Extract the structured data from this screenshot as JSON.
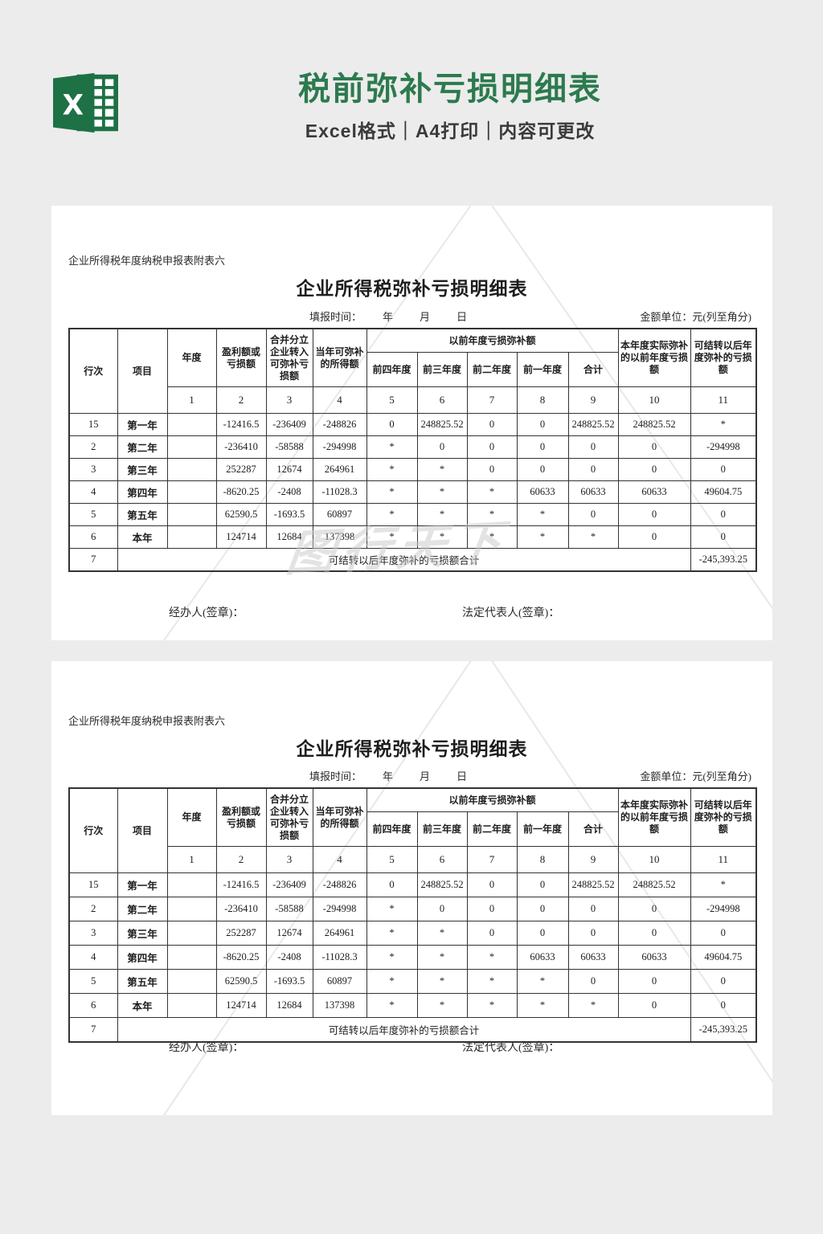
{
  "page": {
    "title": "税前弥补亏损明细表",
    "subtitle": "Excel格式｜A4打印｜内容可更改"
  },
  "colors": {
    "brand_green": "#2c7a4e",
    "icon_green": "#1e7145",
    "page_background": "#ececec",
    "table_border": "#333333",
    "watermark_gray": "#c9c9c9"
  },
  "icon": {
    "name": "excel-logo",
    "letter": "X"
  },
  "sheet": {
    "form_note": "企业所得税年度纳税申报表附表六",
    "table_title": "企业所得税弥补亏损明细表",
    "fill_time_label": "填报时间：",
    "fill_time_value": "年　月　日",
    "unit_label": "金额单位：元(列至角分)",
    "header": {
      "row_no": "行次",
      "item": "项目",
      "year": "年度",
      "profit_loss": "盈利额或亏损额",
      "merge_transfer": "合并分立企业转入可弥补亏损额",
      "current_income": "当年可弥补的所得额",
      "prior_group": "以前年度亏损弥补额",
      "prior_cols": [
        "前四年度",
        "前三年度",
        "前二年度",
        "前一年度",
        "合计"
      ],
      "actual_makeup": "本年度实际弥补的以前年度亏损额",
      "carry_forward": "可结转以后年度弥补的亏损额",
      "col_numbers": [
        "1",
        "2",
        "3",
        "4",
        "5",
        "6",
        "7",
        "8",
        "9",
        "10",
        "11"
      ]
    },
    "rows": [
      {
        "no": "15",
        "item": "第一年",
        "year": "",
        "c2": "-12416.5",
        "c3": "-236409",
        "c4": "-248826",
        "c5": "0",
        "c6": "248825.52",
        "c7": "0",
        "c8": "0",
        "c9": "248825.52",
        "c10": "248825.52",
        "c11": "*"
      },
      {
        "no": "2",
        "item": "第二年",
        "year": "",
        "c2": "-236410",
        "c3": "-58588",
        "c4": "-294998",
        "c5": "*",
        "c6": "0",
        "c7": "0",
        "c8": "0",
        "c9": "0",
        "c10": "0",
        "c11": "-294998"
      },
      {
        "no": "3",
        "item": "第三年",
        "year": "",
        "c2": "252287",
        "c3": "12674",
        "c4": "264961",
        "c5": "*",
        "c6": "*",
        "c7": "0",
        "c8": "0",
        "c9": "0",
        "c10": "0",
        "c11": "0"
      },
      {
        "no": "4",
        "item": "第四年",
        "year": "",
        "c2": "-8620.25",
        "c3": "-2408",
        "c4": "-11028.3",
        "c5": "*",
        "c6": "*",
        "c7": "*",
        "c8": "60633",
        "c9": "60633",
        "c10": "60633",
        "c11": "49604.75"
      },
      {
        "no": "5",
        "item": "第五年",
        "year": "",
        "c2": "62590.5",
        "c3": "-1693.5",
        "c4": "60897",
        "c5": "*",
        "c6": "*",
        "c7": "*",
        "c8": "*",
        "c9": "0",
        "c10": "0",
        "c11": "0"
      },
      {
        "no": "6",
        "item": "本年",
        "year": "",
        "c2": "124714",
        "c3": "12684",
        "c4": "137398",
        "c5": "*",
        "c6": "*",
        "c7": "*",
        "c8": "*",
        "c9": "*",
        "c10": "0",
        "c11": "0"
      }
    ],
    "total_row": {
      "no": "7",
      "label": "可结转以后年度弥补的亏损额合计",
      "value": "-245,393.25"
    },
    "sign_left": "经办人(签章)：",
    "sign_right": "法定代表人(签章)：",
    "watermark": "图行天下"
  }
}
